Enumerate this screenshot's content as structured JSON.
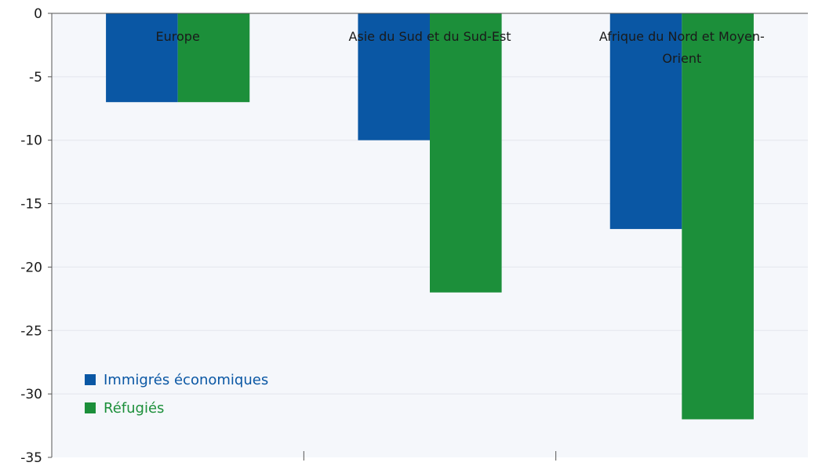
{
  "chart_data": {
    "type": "bar",
    "categories": [
      "Europe",
      "Asie du Sud et du Sud-Est",
      "Afrique du Nord et Moyen-Orient"
    ],
    "category_label_lines": [
      [
        "Europe"
      ],
      [
        "Asie du Sud et du Sud-Est"
      ],
      [
        "Afrique du Nord et Moyen-",
        "Orient"
      ]
    ],
    "series": [
      {
        "name": "Immigrés économiques",
        "values": [
          -7,
          -10,
          -17
        ],
        "color": "#0a57a4"
      },
      {
        "name": "Réfugiés",
        "values": [
          -7,
          -22,
          -32
        ],
        "color": "#1c8f3a"
      }
    ],
    "ylim": [
      -35,
      0
    ],
    "yticks": [
      0,
      -5,
      -10,
      -15,
      -20,
      -25,
      -30,
      -35
    ],
    "ytick_labels": [
      "0",
      "-5",
      "-10",
      "-15",
      "-20",
      "-25",
      "-30",
      "-35"
    ],
    "title": "",
    "xlabel": "",
    "ylabel": "",
    "grid": true,
    "legend_position": "bottom-left",
    "colors": {
      "plot_background": "#f5f7fb",
      "gridline": "#e3e6ec",
      "axis": "#555555"
    }
  }
}
